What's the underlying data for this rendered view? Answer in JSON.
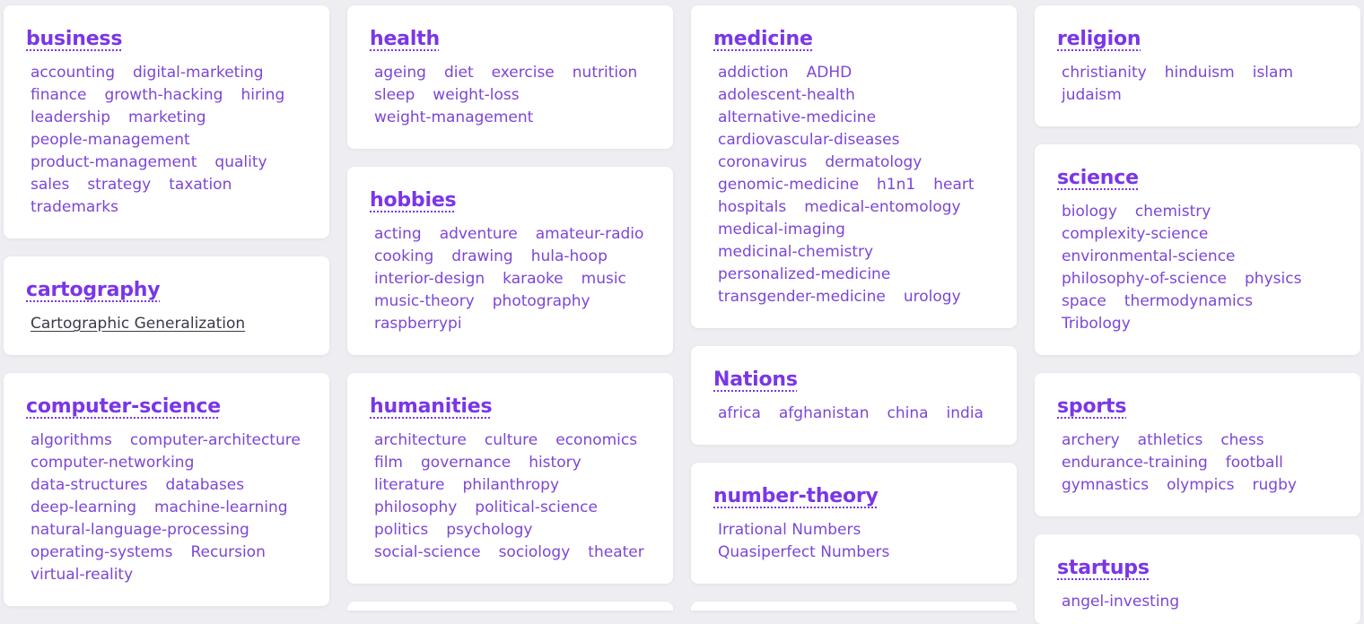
{
  "cards": {
    "business": {
      "title": "business",
      "lines": [
        [
          "accounting",
          "digital-marketing"
        ],
        [
          "finance",
          "growth-hacking",
          "hiring"
        ],
        [
          "leadership",
          "marketing"
        ],
        [
          "people-management"
        ],
        [
          "product-management",
          "quality"
        ],
        [
          "sales",
          "strategy",
          "taxation"
        ],
        [
          "trademarks"
        ]
      ]
    },
    "cartography": {
      "title": "cartography",
      "lines": [
        [
          "Cartographic Generalization"
        ]
      ]
    },
    "computer_science": {
      "title": "computer-science",
      "lines": [
        [
          "algorithms",
          "computer-architecture"
        ],
        [
          "computer-networking"
        ],
        [
          "data-structures",
          "databases"
        ],
        [
          "deep-learning",
          "machine-learning"
        ],
        [
          "natural-language-processing"
        ],
        [
          "operating-systems",
          "Recursion"
        ],
        [
          "virtual-reality"
        ]
      ]
    },
    "health": {
      "title": "health",
      "lines": [
        [
          "ageing",
          "diet",
          "exercise",
          "nutrition"
        ],
        [
          "sleep",
          "weight-loss"
        ],
        [
          "weight-management"
        ]
      ]
    },
    "hobbies": {
      "title": "hobbies",
      "lines": [
        [
          "acting",
          "adventure",
          "amateur-radio"
        ],
        [
          "cooking",
          "drawing",
          "hula-hoop"
        ],
        [
          "interior-design",
          "karaoke",
          "music"
        ],
        [
          "music-theory",
          "photography"
        ],
        [
          "raspberrypi"
        ]
      ]
    },
    "humanities": {
      "title": "humanities",
      "lines": [
        [
          "architecture",
          "culture",
          "economics"
        ],
        [
          "film",
          "governance",
          "history"
        ],
        [
          "literature",
          "philanthropy"
        ],
        [
          "philosophy",
          "political-science"
        ],
        [
          "politics",
          "psychology"
        ],
        [
          "social-science",
          "sociology",
          "theater"
        ]
      ]
    },
    "medicine": {
      "title": "medicine",
      "lines": [
        [
          "addiction",
          "ADHD"
        ],
        [
          "adolescent-health"
        ],
        [
          "alternative-medicine"
        ],
        [
          "cardiovascular-diseases"
        ],
        [
          "coronavirus",
          "dermatology"
        ],
        [
          "genomic-medicine",
          "h1n1",
          "heart"
        ],
        [
          "hospitals",
          "medical-entomology"
        ],
        [
          "medical-imaging"
        ],
        [
          "medicinal-chemistry"
        ],
        [
          "personalized-medicine"
        ],
        [
          "transgender-medicine",
          "urology"
        ]
      ]
    },
    "nations": {
      "title": "Nations",
      "lines": [
        [
          "africa",
          "afghanistan",
          "china",
          "india"
        ]
      ]
    },
    "number_theory": {
      "title": "number-theory",
      "lines": [
        [
          "Irrational Numbers"
        ],
        [
          "Quasiperfect Numbers"
        ]
      ]
    },
    "religion": {
      "title": "religion",
      "lines": [
        [
          "christianity",
          "hinduism",
          "islam"
        ],
        [
          "judaism"
        ]
      ]
    },
    "science": {
      "title": "science",
      "lines": [
        [
          "biology",
          "chemistry"
        ],
        [
          "complexity-science"
        ],
        [
          "environmental-science"
        ],
        [
          "philosophy-of-science",
          "physics"
        ],
        [
          "space",
          "thermodynamics"
        ],
        [
          "Tribology"
        ]
      ]
    },
    "sports": {
      "title": "sports",
      "lines": [
        [
          "archery",
          "athletics",
          "chess"
        ],
        [
          "endurance-training",
          "football"
        ],
        [
          "gymnastics",
          "olympics",
          "rugby"
        ]
      ]
    },
    "startups": {
      "title": "startups",
      "lines": [
        [
          "angel-investing"
        ]
      ]
    }
  },
  "colors": {
    "accent": "#7a36e8",
    "tag": "#7c46d6",
    "background": "#eeeef2",
    "card": "#ffffff"
  }
}
